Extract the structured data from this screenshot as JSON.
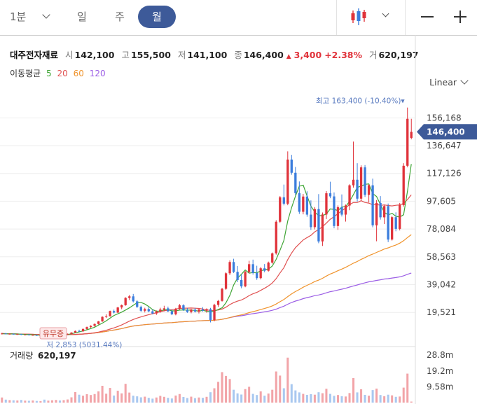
{
  "toolbar": {
    "interval_label": "1분",
    "tabs": [
      "일",
      "주",
      "월"
    ],
    "active_tab": "월",
    "chart_type_icon": "candlestick-icon",
    "dropdown_icon": "chevron-down-icon",
    "zoom_out_icon": "minus-icon",
    "zoom_in_icon": "plus-icon"
  },
  "info": {
    "name": "대주전자재료",
    "open_label": "시",
    "open": "142,100",
    "high_label": "고",
    "high": "155,500",
    "low_label": "저",
    "low": "141,100",
    "close_label": "종",
    "close": "146,400",
    "change_arrow": "▲",
    "change": "3,400",
    "change_pct": "+2.38%",
    "volume_label": "거",
    "volume": "620,197"
  },
  "ma": {
    "title": "이동평균",
    "periods": [
      "5",
      "20",
      "60",
      "120"
    ],
    "colors": [
      "#3fa535",
      "#e05050",
      "#f0932b",
      "#9b5de5"
    ]
  },
  "scale_label": "Linear",
  "colors": {
    "up": "#e0323a",
    "down": "#3b7ddd",
    "up_volume": "#f2a4a8",
    "down_volume": "#a9c8f0",
    "badge": "#3d5a99"
  },
  "chart_data": [
    {
      "type": "candlestick",
      "y_ticks": [
        "156,168",
        "136,647",
        "117,126",
        "97,605",
        "78,084",
        "58,563",
        "39,042",
        "19,521"
      ],
      "ylim": [
        -3000,
        176000
      ],
      "current_price": "146,400",
      "max_label": "최고",
      "max_value": "163,400 (-10.40%)",
      "min_label": "저",
      "min_value": "2,853 (5031.44%)",
      "event_label": "유무증",
      "candles": [
        [
          4400,
          5200,
          4100,
          4700
        ],
        [
          4700,
          5100,
          4200,
          4400
        ],
        [
          4400,
          4900,
          4000,
          4500
        ],
        [
          4500,
          4700,
          3900,
          4100
        ],
        [
          4100,
          4600,
          3800,
          4300
        ],
        [
          4300,
          4500,
          3600,
          3800
        ],
        [
          3800,
          4300,
          3500,
          4000
        ],
        [
          4000,
          4200,
          3300,
          3500
        ],
        [
          3500,
          4000,
          3200,
          3700
        ],
        [
          3700,
          3900,
          3000,
          3200
        ],
        [
          3200,
          3700,
          2900,
          3400
        ],
        [
          3400,
          3600,
          2853,
          3000
        ],
        [
          3000,
          3500,
          2900,
          3300
        ],
        [
          3300,
          3800,
          3000,
          3600
        ],
        [
          3600,
          4200,
          3300,
          4000
        ],
        [
          4000,
          4500,
          3700,
          3900
        ],
        [
          3900,
          4400,
          3600,
          4200
        ],
        [
          4200,
          4700,
          3900,
          4500
        ],
        [
          4500,
          5600,
          4300,
          5400
        ],
        [
          5400,
          6800,
          5100,
          6500
        ],
        [
          6500,
          7400,
          5900,
          6200
        ],
        [
          6200,
          8300,
          6000,
          7900
        ],
        [
          7900,
          9600,
          7500,
          9200
        ],
        [
          9200,
          10500,
          8600,
          10100
        ],
        [
          10100,
          11800,
          9500,
          11400
        ],
        [
          11400,
          13500,
          11000,
          13200
        ],
        [
          13200,
          16800,
          12900,
          16400
        ],
        [
          16400,
          18200,
          15600,
          16900
        ],
        [
          16900,
          20800,
          16500,
          20500
        ],
        [
          20500,
          21500,
          18800,
          19400
        ],
        [
          19400,
          23400,
          19100,
          23000
        ],
        [
          23000,
          25100,
          21800,
          24600
        ],
        [
          24600,
          30200,
          24200,
          29700
        ],
        [
          29700,
          31800,
          28200,
          30800
        ],
        [
          30800,
          32500,
          26500,
          27300
        ],
        [
          27300,
          28100,
          22700,
          23400
        ],
        [
          23400,
          24300,
          19900,
          20700
        ],
        [
          20700,
          22800,
          19500,
          21900
        ],
        [
          21900,
          23200,
          19600,
          20300
        ],
        [
          20300,
          21600,
          18200,
          18800
        ],
        [
          18800,
          20900,
          17800,
          20200
        ],
        [
          20200,
          22800,
          19300,
          21600
        ],
        [
          21600,
          24200,
          20300,
          22400
        ],
        [
          22400,
          23600,
          19700,
          20300
        ],
        [
          20300,
          21600,
          17600,
          18200
        ],
        [
          18200,
          22700,
          17500,
          22100
        ],
        [
          22100,
          25400,
          21400,
          24500
        ],
        [
          24500,
          25300,
          20600,
          21200
        ],
        [
          21200,
          22600,
          19200,
          19800
        ],
        [
          19800,
          22100,
          18900,
          21500
        ],
        [
          21500,
          22800,
          19400,
          20100
        ],
        [
          20100,
          22200,
          18800,
          21600
        ],
        [
          21600,
          23200,
          20100,
          20700
        ],
        [
          20700,
          22400,
          19300,
          21800
        ],
        [
          21800,
          22700,
          12500,
          14100
        ],
        [
          14100,
          25600,
          13300,
          24800
        ],
        [
          24800,
          28300,
          23400,
          27600
        ],
        [
          27600,
          36800,
          27100,
          36100
        ],
        [
          36100,
          47700,
          35400,
          47000
        ],
        [
          47000,
          56100,
          45800,
          54900
        ],
        [
          54900,
          57200,
          47200,
          48000
        ],
        [
          48000,
          52100,
          40800,
          42300
        ],
        [
          42300,
          46400,
          36500,
          37800
        ],
        [
          37800,
          48700,
          37200,
          47900
        ],
        [
          47900,
          55800,
          47000,
          53400
        ],
        [
          53400,
          56600,
          46100,
          47200
        ],
        [
          47200,
          52300,
          42400,
          43600
        ],
        [
          43600,
          51400,
          42700,
          50500
        ],
        [
          50500,
          53500,
          47700,
          48800
        ],
        [
          48800,
          55200,
          48200,
          54500
        ],
        [
          54500,
          61600,
          53700,
          61000
        ],
        [
          61000,
          84300,
          60100,
          83200
        ],
        [
          83200,
          101200,
          82400,
          100400
        ],
        [
          100400,
          109300,
          94700,
          95900
        ],
        [
          95900,
          132600,
          94800,
          126900
        ],
        [
          126900,
          130200,
          116200,
          117600
        ],
        [
          117600,
          121700,
          101900,
          103300
        ],
        [
          103300,
          111500,
          88700,
          90200
        ],
        [
          90200,
          102700,
          88400,
          100900
        ],
        [
          100900,
          104600,
          86700,
          88200
        ],
        [
          88200,
          98200,
          77500,
          79400
        ],
        [
          79400,
          93500,
          77800,
          92100
        ],
        [
          92100,
          102600,
          68100,
          69400
        ],
        [
          69400,
          89700,
          66200,
          88300
        ],
        [
          88300,
          104700,
          85100,
          103200
        ],
        [
          103200,
          111300,
          99700,
          101000
        ],
        [
          101000,
          103800,
          78600,
          80200
        ],
        [
          80200,
          94700,
          77500,
          93400
        ],
        [
          93400,
          102400,
          86900,
          88200
        ],
        [
          88200,
          95300,
          83300,
          94600
        ],
        [
          94600,
          109500,
          91300,
          108800
        ],
        [
          108800,
          139500,
          107200,
          112700
        ],
        [
          112700,
          124300,
          97400,
          99400
        ],
        [
          99400,
          122800,
          98100,
          121400
        ],
        [
          121400,
          123000,
          100600,
          102100
        ],
        [
          102100,
          109500,
          96800,
          108800
        ],
        [
          108800,
          113500,
          79300,
          80700
        ],
        [
          80700,
          98400,
          69500,
          96400
        ],
        [
          96400,
          101200,
          84700,
          86300
        ],
        [
          86300,
          95200,
          81600,
          94200
        ],
        [
          94200,
          96000,
          68900,
          70700
        ],
        [
          70700,
          87300,
          70000,
          86400
        ],
        [
          86400,
          89800,
          76500,
          78200
        ],
        [
          78200,
          96400,
          77100,
          94900
        ],
        [
          94900,
          124300,
          93800,
          122500
        ],
        [
          122500,
          163400,
          121500,
          155500
        ],
        [
          142100,
          155500,
          141100,
          146400
        ]
      ],
      "ma5": [
        4500,
        4470,
        4440,
        4400,
        4360,
        4220,
        4100,
        3920,
        3820,
        3660,
        3560,
        3420,
        3300,
        3260,
        3380,
        3560,
        3780,
        4040,
        4520,
        5140,
        5800,
        6520,
        7320,
        8160,
        9140,
        10560,
        12020,
        13560,
        15480,
        17340,
        18540,
        19700,
        21200,
        22700,
        24560,
        26300,
        26500,
        25400,
        23720,
        21500,
        20380,
        20520,
        21300,
        21480,
        20620,
        20580,
        21140,
        21260,
        21160,
        21180,
        20920,
        20320,
        21120,
        20320,
        20180,
        20480,
        21560,
        22780,
        26320,
        31480,
        38840,
        43600,
        46280,
        49300,
        47100,
        47520,
        47340,
        48700,
        49640,
        49900,
        52080,
        56820,
        63240,
        70120,
        83740,
        93160,
        101140,
        108200,
        108880,
        101300,
        94240,
        90060,
        87480,
        87600,
        88600,
        92180,
        91920,
        91060,
        93520,
        93820,
        97540,
        102180,
        107300,
        108240,
        109480,
        109780,
        102960,
        100960,
        95360,
        89860,
        87960,
        89100,
        87040,
        86480,
        88140,
        104520,
        123750
      ]
    },
    {
      "type": "bar",
      "title": "거래량",
      "latest_value": "620,197",
      "y_ticks": [
        "28.8m",
        "19.2m",
        "9.58m"
      ],
      "ylim": [
        0,
        34000000
      ],
      "values": [
        3100000,
        1800000,
        1500000,
        1400000,
        1300000,
        1600000,
        1200000,
        1100000,
        1300000,
        1000000,
        900000,
        1800000,
        1200000,
        1400000,
        1600000,
        1300000,
        1500000,
        1900000,
        3200000,
        6400000,
        4800000,
        4200000,
        5100000,
        4600000,
        5200000,
        6800000,
        10200000,
        5400000,
        8900000,
        4300000,
        7200000,
        5600000,
        11400000,
        6100000,
        4200000,
        3800000,
        3200000,
        3600000,
        2900000,
        2400000,
        3100000,
        4100000,
        3500000,
        2900000,
        2500000,
        4300000,
        5200000,
        3400000,
        2800000,
        3600000,
        2700000,
        3100000,
        2900000,
        3500000,
        6300000,
        8700000,
        12600000,
        18500000,
        16200000,
        14300000,
        7800000,
        5600000,
        4900000,
        8200000,
        9600000,
        5300000,
        4600000,
        6800000,
        4200000,
        5500000,
        7800000,
        18900000,
        16400000,
        8700000,
        27300000,
        11200000,
        7400000,
        6200000,
        5300000,
        4700000,
        5100000,
        4800000,
        6300000,
        5700000,
        8400000,
        5300000,
        4100000,
        4600000,
        3900000,
        3700000,
        5800000,
        14900000,
        6200000,
        8100000,
        4700000,
        4200000,
        7600000,
        8500000,
        4600000,
        3900000,
        4800000,
        4400000,
        3500000,
        3700000,
        9100000,
        17600000,
        620197
      ]
    }
  ]
}
